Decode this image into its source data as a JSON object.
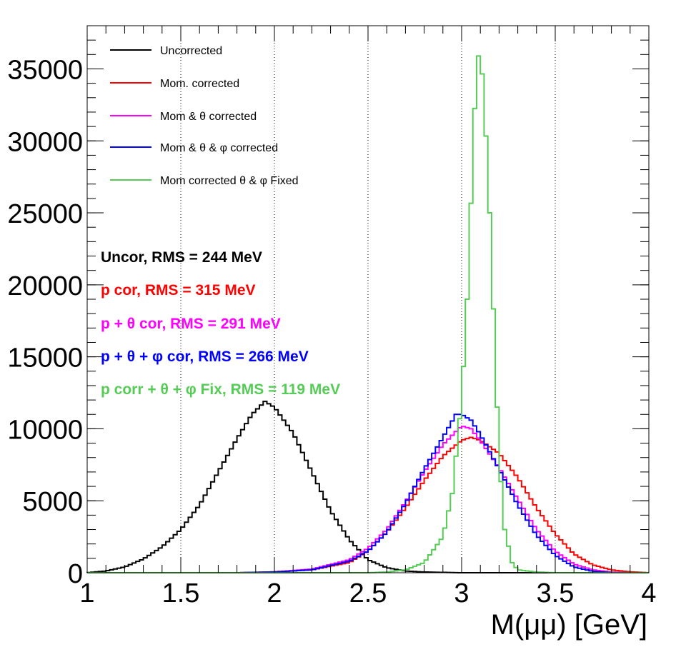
{
  "chart_data": {
    "type": "line",
    "title": "",
    "xlabel": "M(μμ) [GeV]",
    "ylabel": "",
    "xlim": [
      1,
      4
    ],
    "ylim": [
      0,
      38000
    ],
    "x_ticks": [
      "1",
      "1.5",
      "2",
      "2.5",
      "3",
      "3.5",
      "4"
    ],
    "y_ticks": [
      "0",
      "5000",
      "10000",
      "15000",
      "20000",
      "25000",
      "30000",
      "35000"
    ],
    "vertical_gridlines": [
      1.5,
      2,
      2.5,
      3,
      3.5
    ],
    "legend_position": "top-left",
    "series": [
      {
        "name": "Uncorrected",
        "color": "#000000",
        "rms_label": "Uncor, RMS = 244 MeV",
        "points": [
          [
            1.0,
            0
          ],
          [
            1.1,
            120
          ],
          [
            1.2,
            400
          ],
          [
            1.3,
            950
          ],
          [
            1.4,
            1800
          ],
          [
            1.5,
            3000
          ],
          [
            1.6,
            4700
          ],
          [
            1.7,
            7000
          ],
          [
            1.8,
            9300
          ],
          [
            1.88,
            11000
          ],
          [
            1.95,
            11900
          ],
          [
            2.0,
            11500
          ],
          [
            2.1,
            9700
          ],
          [
            2.2,
            7000
          ],
          [
            2.3,
            4300
          ],
          [
            2.4,
            2300
          ],
          [
            2.5,
            900
          ],
          [
            2.6,
            350
          ],
          [
            2.7,
            120
          ],
          [
            2.8,
            50
          ],
          [
            3.0,
            0
          ]
        ]
      },
      {
        "name": "Mom. corrected",
        "color": "#ff0000",
        "rms_label": "p cor, RMS = 315 MeV",
        "points": [
          [
            1.8,
            0
          ],
          [
            2.0,
            60
          ],
          [
            2.2,
            200
          ],
          [
            2.4,
            700
          ],
          [
            2.5,
            1500
          ],
          [
            2.6,
            2800
          ],
          [
            2.7,
            4500
          ],
          [
            2.8,
            6400
          ],
          [
            2.9,
            8100
          ],
          [
            3.0,
            9200
          ],
          [
            3.05,
            9400
          ],
          [
            3.1,
            9200
          ],
          [
            3.2,
            8300
          ],
          [
            3.3,
            6600
          ],
          [
            3.4,
            4500
          ],
          [
            3.5,
            2700
          ],
          [
            3.6,
            1300
          ],
          [
            3.7,
            550
          ],
          [
            3.8,
            200
          ],
          [
            3.9,
            60
          ],
          [
            4.0,
            0
          ]
        ]
      },
      {
        "name": "Mom &  θ corrected",
        "color": "#ff00ff",
        "rms_label": "p +  θ cor, RMS = 291 MeV",
        "points": [
          [
            1.8,
            0
          ],
          [
            2.0,
            60
          ],
          [
            2.2,
            250
          ],
          [
            2.4,
            900
          ],
          [
            2.5,
            1700
          ],
          [
            2.6,
            3000
          ],
          [
            2.7,
            4900
          ],
          [
            2.8,
            7000
          ],
          [
            2.9,
            8900
          ],
          [
            3.0,
            10200
          ],
          [
            3.05,
            10000
          ],
          [
            3.1,
            9200
          ],
          [
            3.2,
            7300
          ],
          [
            3.3,
            5100
          ],
          [
            3.4,
            3000
          ],
          [
            3.5,
            1500
          ],
          [
            3.6,
            600
          ],
          [
            3.7,
            200
          ],
          [
            3.8,
            50
          ],
          [
            3.9,
            0
          ]
        ]
      },
      {
        "name": "Mom &  θ & φ corrected",
        "color": "#0000ff",
        "rms_label": "p +  θ +  φ cor, RMS = 266 MeV",
        "points": [
          [
            1.8,
            0
          ],
          [
            2.0,
            50
          ],
          [
            2.2,
            200
          ],
          [
            2.4,
            800
          ],
          [
            2.5,
            1500
          ],
          [
            2.6,
            2800
          ],
          [
            2.7,
            4800
          ],
          [
            2.8,
            7200
          ],
          [
            2.9,
            9400
          ],
          [
            2.97,
            11000
          ],
          [
            3.0,
            11000
          ],
          [
            3.05,
            10600
          ],
          [
            3.1,
            9600
          ],
          [
            3.2,
            7200
          ],
          [
            3.3,
            4700
          ],
          [
            3.4,
            2600
          ],
          [
            3.5,
            1200
          ],
          [
            3.6,
            400
          ],
          [
            3.7,
            100
          ],
          [
            3.8,
            0
          ]
        ]
      },
      {
        "name": "Mom corrected    θ & φ Fixed",
        "color": "#55cc55",
        "rms_label": "p corr +  θ +  φ Fix, RMS = 119 MeV",
        "points": [
          [
            2.5,
            0
          ],
          [
            2.6,
            50
          ],
          [
            2.7,
            200
          ],
          [
            2.8,
            700
          ],
          [
            2.9,
            2500
          ],
          [
            2.95,
            5500
          ],
          [
            3.0,
            12000
          ],
          [
            3.03,
            19000
          ],
          [
            3.06,
            29000
          ],
          [
            3.08,
            35500
          ],
          [
            3.1,
            36300
          ],
          [
            3.12,
            33000
          ],
          [
            3.15,
            25000
          ],
          [
            3.18,
            15000
          ],
          [
            3.2,
            8000
          ],
          [
            3.23,
            3000
          ],
          [
            3.27,
            700
          ],
          [
            3.3,
            200
          ],
          [
            3.4,
            50
          ],
          [
            3.5,
            0
          ]
        ]
      }
    ]
  }
}
